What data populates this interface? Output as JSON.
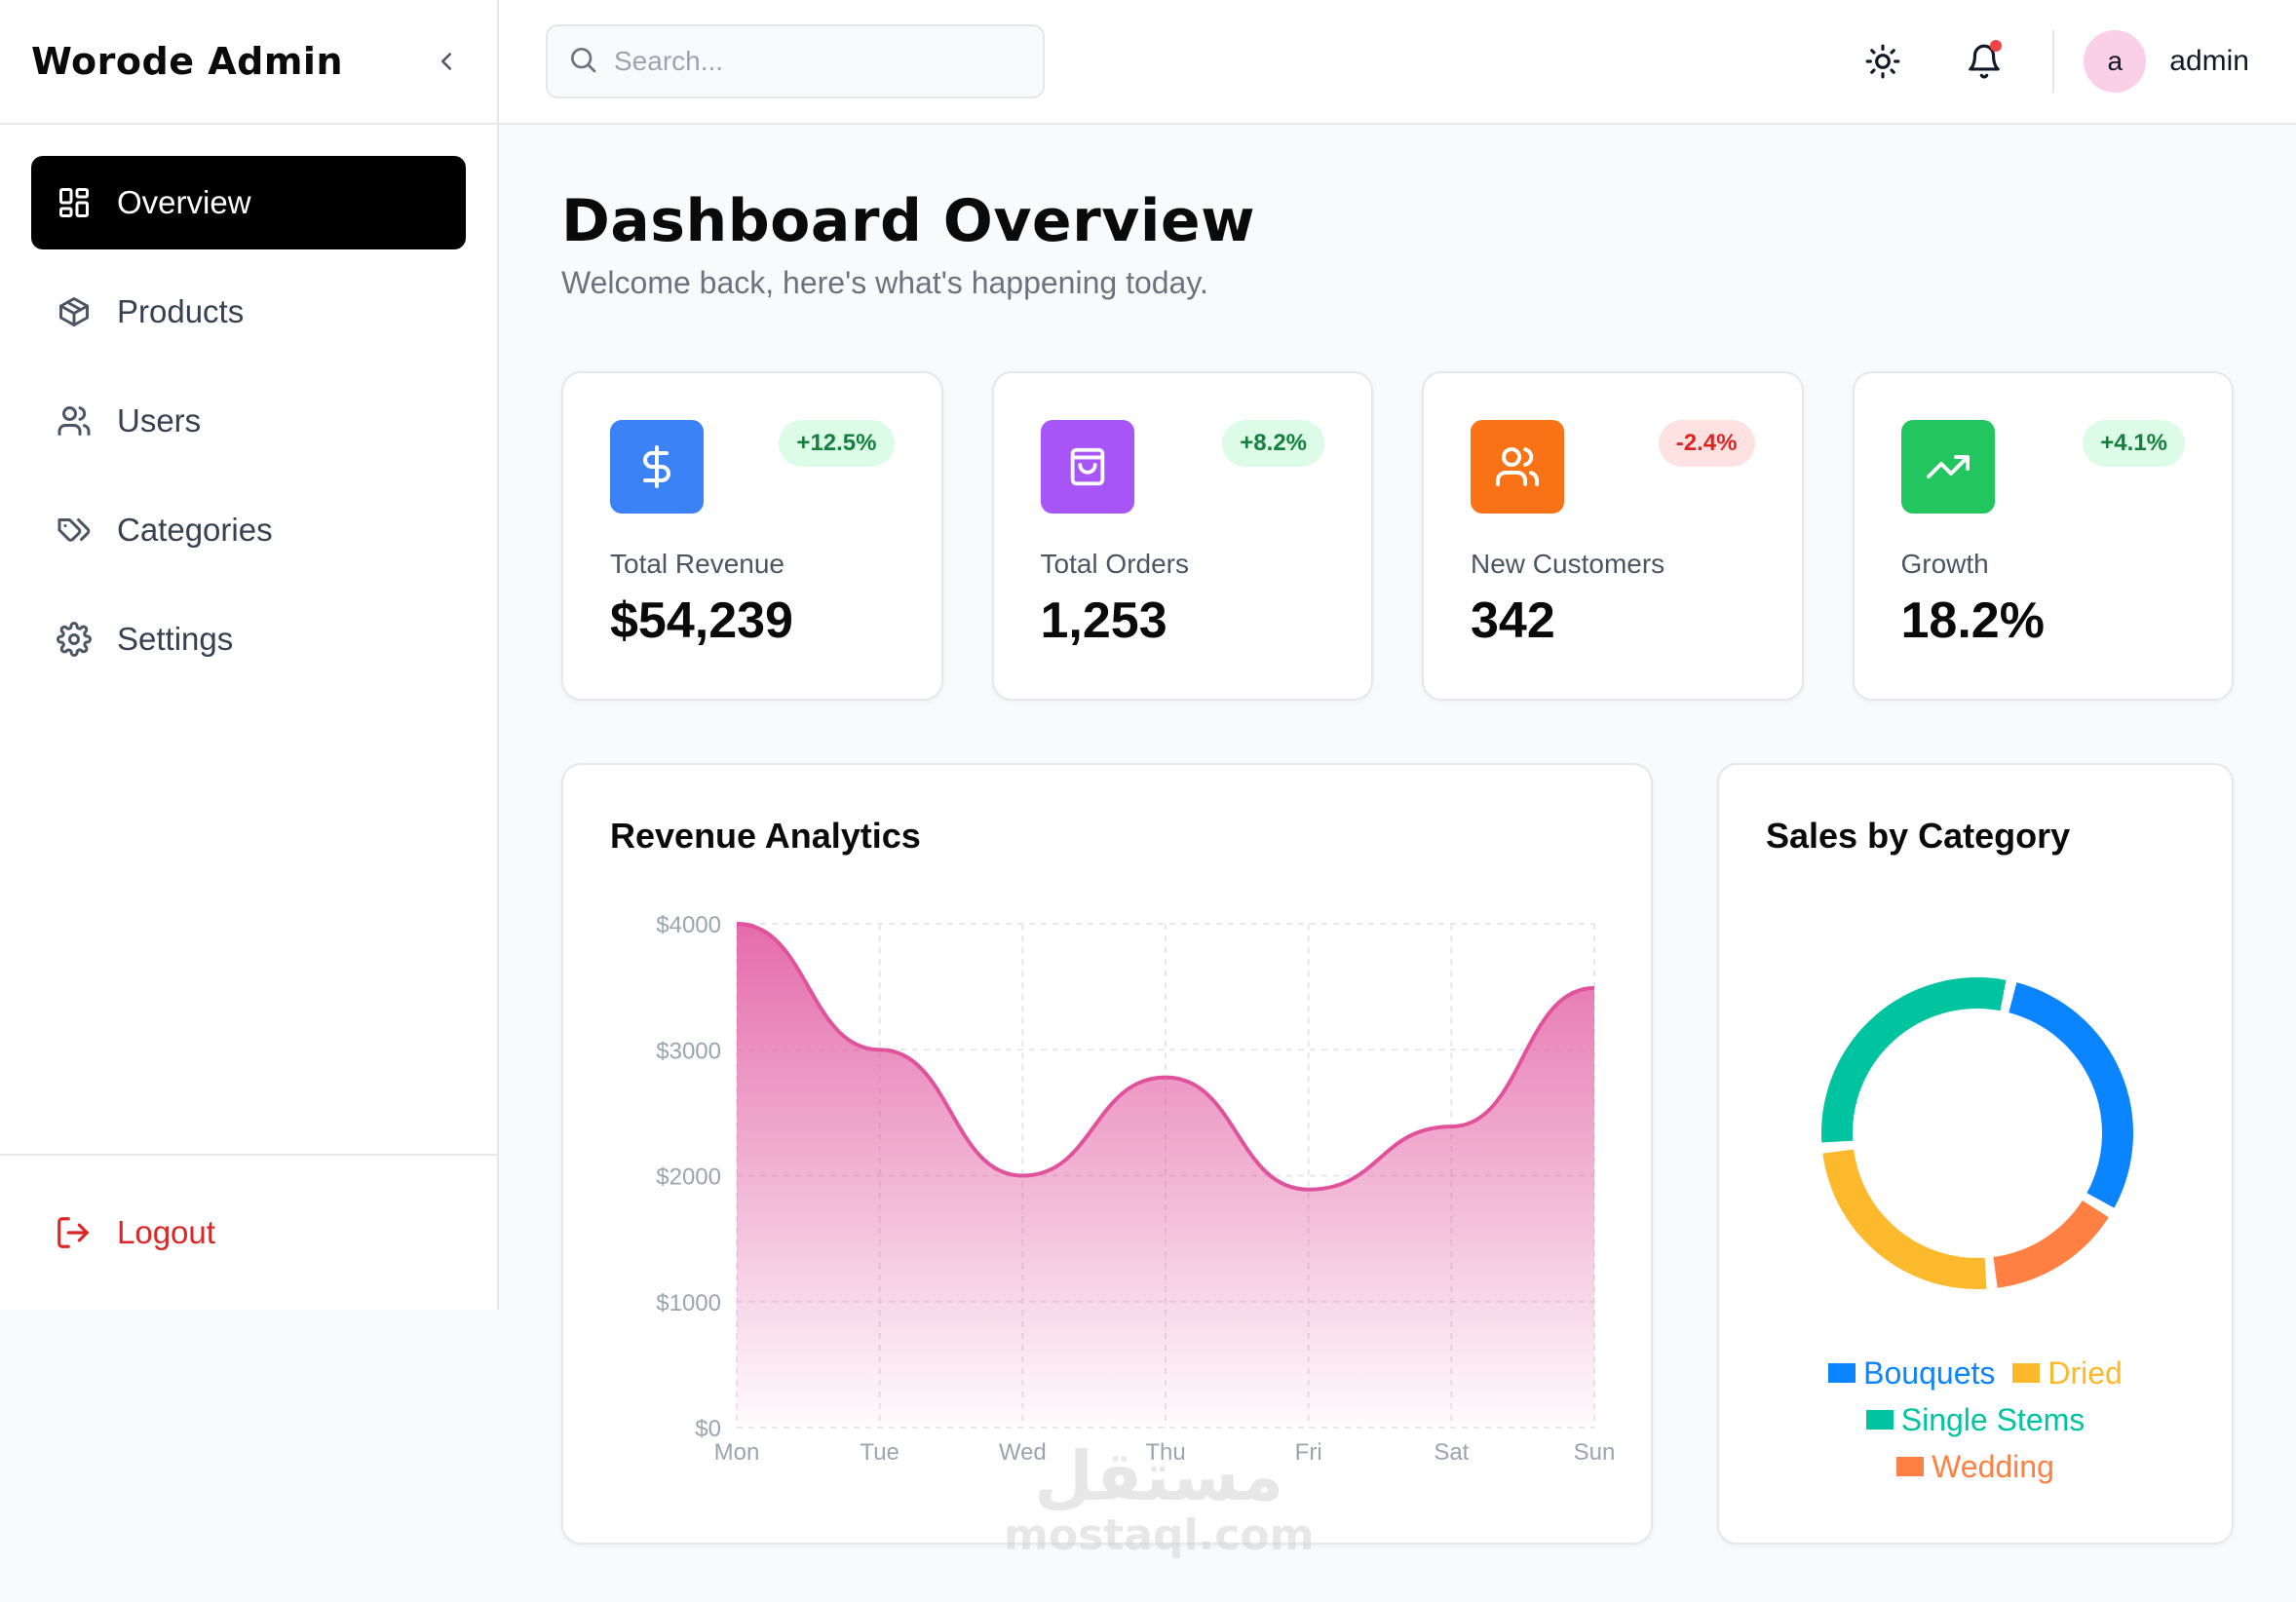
{
  "app": {
    "brand": "Worode Admin"
  },
  "sidebar": {
    "items": [
      {
        "label": "Overview",
        "icon": "layout-grid-icon",
        "active": true
      },
      {
        "label": "Products",
        "icon": "package-icon",
        "active": false
      },
      {
        "label": "Users",
        "icon": "users-icon",
        "active": false
      },
      {
        "label": "Categories",
        "icon": "tags-icon",
        "active": false
      },
      {
        "label": "Settings",
        "icon": "gear-icon",
        "active": false
      }
    ],
    "logout_label": "Logout"
  },
  "header": {
    "search_placeholder": "Search...",
    "user_initial": "a",
    "username": "admin"
  },
  "page": {
    "title": "Dashboard Overview",
    "subtitle": "Welcome back, here's what's happening today."
  },
  "stats": [
    {
      "label": "Total Revenue",
      "value": "$54,239",
      "change": "+12.5%",
      "trend": "up",
      "color": "#3b82f6",
      "icon": "dollar-icon"
    },
    {
      "label": "Total Orders",
      "value": "1,253",
      "change": "+8.2%",
      "trend": "up",
      "color": "#a855f7",
      "icon": "shopping-bag-icon"
    },
    {
      "label": "New Customers",
      "value": "342",
      "change": "-2.4%",
      "trend": "down",
      "color": "#f97316",
      "icon": "users-icon"
    },
    {
      "label": "Growth",
      "value": "18.2%",
      "change": "+4.1%",
      "trend": "up",
      "color": "#22c55e",
      "icon": "trending-up-icon"
    }
  ],
  "chart_data": [
    {
      "type": "area",
      "title": "Revenue Analytics",
      "categories": [
        "Mon",
        "Tue",
        "Wed",
        "Thu",
        "Fri",
        "Sat",
        "Sun"
      ],
      "values": [
        4000,
        3000,
        2000,
        2780,
        1890,
        2390,
        3490
      ],
      "y_ticks": [
        "$0",
        "$1000",
        "$2000",
        "$3000",
        "$4000"
      ],
      "ylim": [
        0,
        4000
      ],
      "grid": true,
      "color": "#e0529c"
    },
    {
      "type": "pie",
      "title": "Sales by Category",
      "donut": true,
      "slices": [
        {
          "name": "Bouquets",
          "value": 30,
          "color": "#0a84ff"
        },
        {
          "name": "Wedding",
          "value": 15,
          "color": "#ff8042"
        },
        {
          "name": "Dried",
          "value": 25,
          "color": "#fdb92c"
        },
        {
          "name": "Single Stems",
          "value": 30,
          "color": "#00c49f"
        }
      ],
      "legend_order": [
        "Bouquets",
        "Dried",
        "Single Stems",
        "Wedding"
      ]
    }
  ],
  "watermark": {
    "arabic": "مستقل",
    "latin": "mostaql.com"
  }
}
